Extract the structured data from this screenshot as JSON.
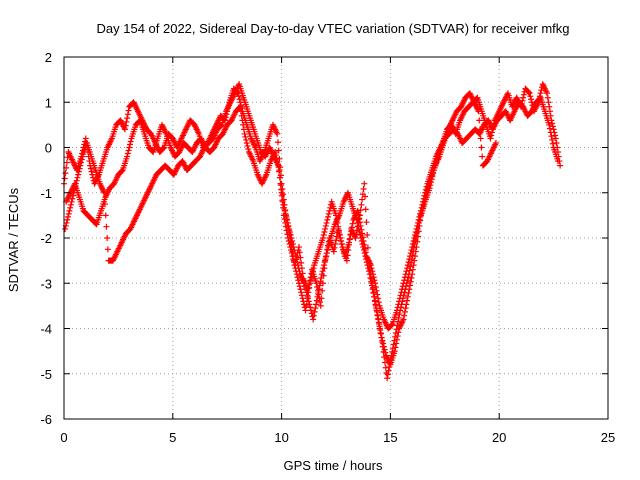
{
  "chart_data": {
    "type": "scatter",
    "title": "Day 154 of 2022, Sidereal Day-to-day VTEC variation (SDTVAR) for receiver mfkg",
    "xlabel": "GPS time / hours",
    "ylabel": "SDTVAR / TECUs",
    "xlim": [
      0,
      25
    ],
    "ylim": [
      -6,
      2
    ],
    "xticks": [
      "0",
      "5",
      "10",
      "15",
      "20",
      "25"
    ],
    "yticks": [
      "2",
      "1",
      "0",
      "-1",
      "-2",
      "-3",
      "-4",
      "-5",
      "-6"
    ],
    "grid": true,
    "marker": "+",
    "series": [
      {
        "color": "#ff0000",
        "x": [
          0.0,
          0.2,
          0.4,
          0.6,
          0.8,
          1.0,
          1.2,
          1.4,
          1.6,
          1.8,
          2.0,
          2.2,
          2.4,
          2.6,
          2.8,
          3.0,
          3.2,
          3.4,
          3.6,
          3.8,
          4.0,
          4.2,
          4.4,
          4.6,
          4.8,
          5.0,
          5.2,
          5.4,
          5.6,
          5.8,
          6.0,
          6.2,
          6.4,
          6.6,
          6.8,
          7.0,
          7.2,
          7.4,
          7.6,
          7.8,
          8.0,
          8.2,
          8.4,
          8.6,
          8.8,
          9.0,
          9.2,
          9.4,
          9.6,
          9.8,
          10.0,
          10.2,
          10.4,
          10.6,
          10.8,
          11.0,
          11.2,
          11.4,
          11.6,
          11.8,
          12.0,
          12.2,
          12.4,
          12.6,
          12.8,
          13.0,
          13.2,
          13.4,
          13.6,
          13.8,
          14.0,
          14.2,
          14.4,
          14.6,
          14.8,
          15.0,
          15.2,
          15.4,
          15.6,
          15.8,
          16.0,
          16.2,
          16.4,
          16.6,
          16.8,
          17.0,
          17.2,
          17.4,
          17.6,
          17.8,
          18.0,
          18.2,
          18.4,
          18.6,
          18.8,
          19.0,
          19.2,
          19.4,
          19.6,
          19.8,
          20.0,
          20.2,
          20.4,
          20.6,
          20.8,
          21.0,
          21.2,
          21.4,
          21.6,
          21.8,
          22.0,
          22.2,
          22.4,
          22.6,
          22.8
        ],
        "y": [
          -0.8,
          -0.1,
          -0.3,
          -0.5,
          -0.2,
          0.2,
          -0.4,
          -0.8,
          -0.6,
          -0.3,
          0.0,
          0.2,
          0.5,
          0.6,
          0.4,
          0.9,
          1.0,
          0.8,
          0.6,
          0.4,
          0.3,
          0.1,
          -0.1,
          0.0,
          0.3,
          0.2,
          0.0,
          0.2,
          0.4,
          0.6,
          0.5,
          0.3,
          0.0,
          0.1,
          0.3,
          0.5,
          0.7,
          0.6,
          1.0,
          1.3,
          1.2,
          0.8,
          0.5,
          0.2,
          0.0,
          -0.3,
          -0.1,
          0.2,
          0.5,
          0.3,
          -0.8,
          -1.5,
          -2.0,
          -2.6,
          -2.2,
          -2.9,
          -3.2,
          -2.7,
          -3.0,
          -3.5,
          -2.5,
          -2.0,
          -2.3,
          -1.8,
          -2.2,
          -2.5,
          -1.8,
          -2.0,
          -1.5,
          -0.8,
          -2.5,
          -3.1,
          -3.7,
          -4.2,
          -4.6,
          -4.8,
          -4.5,
          -4.0,
          -3.8,
          -3.3,
          -2.8,
          -2.2,
          -1.5,
          -1.2,
          -0.9,
          -0.5,
          -0.2,
          0.1,
          0.4,
          0.5,
          0.3,
          0.6,
          0.8,
          0.9,
          1.0,
          1.1,
          0.8,
          0.5,
          0.2,
          0.6,
          0.8,
          1.0,
          1.2,
          0.9,
          1.1,
          0.9,
          1.3,
          1.2,
          0.8,
          1.0,
          1.4,
          1.2,
          0.6,
          0.2,
          -0.4
        ]
      },
      {
        "color": "#ff0000",
        "x": [
          0.1,
          0.3,
          0.5,
          0.7,
          0.9,
          1.1,
          1.3,
          1.5,
          1.7,
          1.9,
          2.1,
          2.3,
          2.5,
          2.7,
          2.9,
          3.1,
          3.3,
          3.5,
          3.7,
          3.9,
          4.1,
          4.3,
          4.5,
          4.7,
          4.9,
          5.1,
          5.3,
          5.5,
          5.7,
          5.9,
          6.1,
          6.3,
          6.5,
          6.7,
          6.9,
          7.1,
          7.3,
          7.5,
          7.7,
          7.9,
          8.1,
          8.3,
          8.5,
          8.7,
          8.9,
          9.1,
          9.3,
          9.5,
          9.7,
          9.9,
          10.1,
          10.3,
          10.5,
          10.7,
          10.9,
          11.1,
          11.3,
          11.5,
          11.7,
          11.9,
          12.1,
          12.3,
          12.5,
          12.7,
          12.9,
          13.1,
          13.3,
          13.5,
          13.7,
          13.9,
          14.1,
          14.3,
          14.5,
          14.7,
          14.9,
          15.1,
          15.3,
          15.5,
          15.7,
          15.9,
          16.1,
          16.3,
          16.5,
          16.7,
          16.9,
          17.1,
          17.3,
          17.5,
          17.7,
          17.9,
          18.1,
          18.3,
          18.5,
          18.7,
          18.9,
          19.1,
          19.3,
          19.5,
          19.7,
          19.9,
          20.1,
          20.3,
          20.5,
          20.7,
          20.9,
          21.1,
          21.3,
          21.5,
          21.7,
          21.9,
          22.1,
          22.3,
          22.5,
          22.7
        ],
        "y": [
          -1.2,
          -1.0,
          -0.8,
          -1.1,
          -1.4,
          -1.5,
          -1.6,
          -1.7,
          -1.4,
          -1.1,
          -0.9,
          -0.8,
          -0.6,
          -0.5,
          -0.2,
          0.2,
          0.5,
          0.6,
          0.3,
          0.0,
          -0.1,
          0.2,
          0.5,
          0.3,
          0.0,
          -0.2,
          -0.1,
          0.1,
          0.0,
          -0.1,
          0.1,
          0.2,
          0.0,
          -0.1,
          0.0,
          0.2,
          0.3,
          0.5,
          0.6,
          0.8,
          0.9,
          0.3,
          -0.1,
          -0.3,
          -0.6,
          -0.8,
          -0.6,
          -0.3,
          -0.1,
          -0.5,
          -1.5,
          -2.0,
          -2.4,
          -2.8,
          -3.2,
          -3.6,
          -3.0,
          -2.6,
          -2.3,
          -2.0,
          -1.6,
          -1.2,
          -1.5,
          -2.0,
          -2.4,
          -2.1,
          -1.6,
          -1.4,
          -1.9,
          -2.4,
          -2.6,
          -3.0,
          -3.5,
          -3.8,
          -4.0,
          -3.9,
          -3.6,
          -3.2,
          -2.8,
          -2.4,
          -2.0,
          -1.6,
          -1.2,
          -0.8,
          -0.5,
          -0.2,
          0.0,
          0.2,
          0.3,
          0.4,
          0.3,
          0.1,
          0.2,
          0.3,
          0.4,
          0.3,
          0.5,
          0.6,
          0.4,
          0.6,
          0.7,
          0.8,
          0.6,
          0.8,
          1.0,
          0.9,
          0.7,
          0.8,
          1.0,
          1.1,
          0.8,
          0.5,
          0.0,
          -0.3
        ]
      },
      {
        "color": "#ff0000",
        "x": [
          0.05,
          0.25,
          0.45,
          0.65,
          0.85,
          1.05,
          1.25,
          1.45,
          1.65,
          1.85,
          2.05,
          2.25,
          2.45,
          2.65,
          2.85,
          3.05,
          3.25,
          3.45,
          3.65,
          3.85,
          4.05,
          4.25,
          4.45,
          4.65,
          4.85,
          5.05,
          5.25,
          5.45,
          5.65,
          5.85,
          6.05,
          6.25,
          6.45,
          6.65,
          6.85,
          7.05,
          7.25,
          7.45,
          7.65,
          7.85,
          8.05,
          8.25,
          8.45,
          8.65,
          8.85,
          9.05,
          9.25,
          9.45,
          9.65,
          9.85,
          10.05,
          10.25,
          10.45,
          10.65,
          10.85,
          11.05,
          11.25,
          11.45,
          11.65,
          11.85,
          12.05,
          12.25,
          12.45,
          12.65,
          12.85,
          13.05,
          13.25,
          13.45,
          13.65,
          13.85,
          14.05,
          14.25,
          14.45,
          14.65,
          14.85,
          15.05,
          15.25,
          15.45,
          15.65,
          15.85,
          16.05,
          16.25,
          16.45,
          16.65,
          16.85,
          17.05,
          17.25,
          17.45,
          17.65,
          17.85,
          18.05,
          18.25,
          18.45,
          18.65,
          18.85,
          19.05,
          19.25,
          19.45,
          19.65,
          19.85
        ],
        "y": [
          -1.8,
          -1.4,
          -1.0,
          -0.6,
          -0.2,
          0.1,
          -0.2,
          -0.5,
          -0.8,
          -1.0,
          -2.5,
          -2.5,
          -2.3,
          -2.1,
          -1.9,
          -1.8,
          -1.6,
          -1.4,
          -1.2,
          -1.0,
          -0.8,
          -0.6,
          -0.5,
          -0.4,
          -0.5,
          -0.6,
          -0.4,
          -0.3,
          -0.5,
          -0.4,
          -0.3,
          -0.2,
          0.0,
          0.1,
          0.2,
          0.4,
          0.5,
          0.8,
          1.0,
          1.2,
          1.4,
          1.1,
          0.8,
          0.5,
          0.2,
          -0.1,
          -0.2,
          0.0,
          -0.2,
          -0.4,
          -1.2,
          -1.6,
          -2.0,
          -2.4,
          -2.8,
          -3.0,
          -3.4,
          -3.8,
          -3.3,
          -2.8,
          -2.4,
          -2.0,
          -1.7,
          -1.5,
          -1.2,
          -1.0,
          -1.3,
          -1.6,
          -2.0,
          -2.4,
          -2.8,
          -3.3,
          -3.8,
          -4.4,
          -5.1,
          -4.6,
          -4.1,
          -3.6,
          -3.2,
          -2.8,
          -2.3,
          -1.8,
          -1.4,
          -1.0,
          -0.7,
          -0.4,
          -0.2,
          0.1,
          0.4,
          0.6,
          0.8,
          0.9,
          1.1,
          1.2,
          1.0,
          0.8,
          -0.4,
          -0.3,
          -0.1,
          0.1
        ]
      }
    ]
  }
}
